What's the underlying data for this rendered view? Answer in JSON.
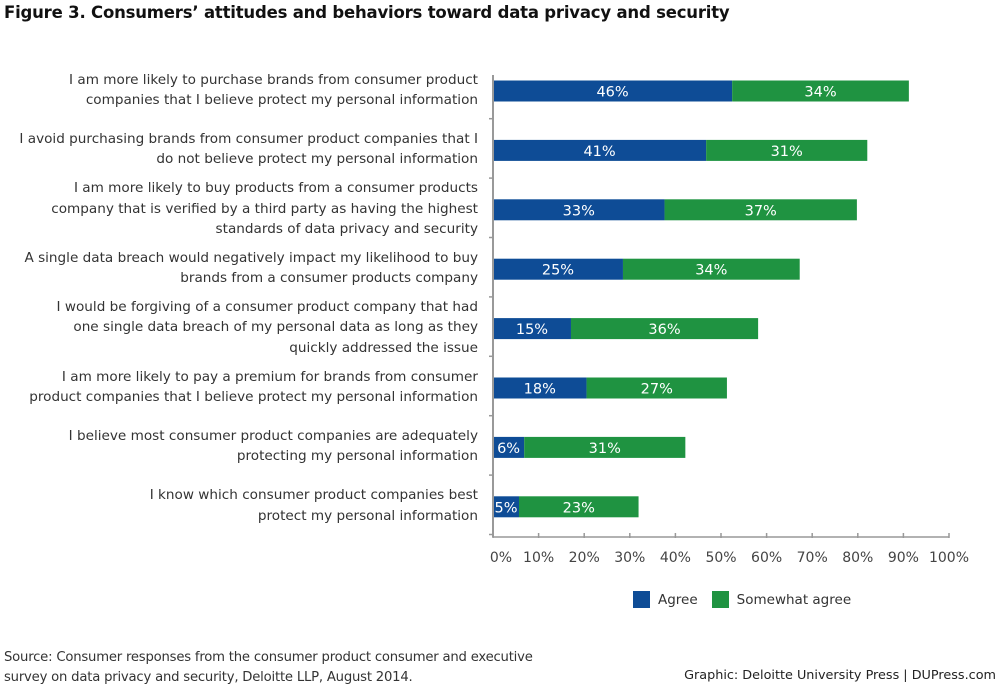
{
  "title": "Figure 3. Consumers’ attitudes and behaviors toward data privacy and security",
  "colors": {
    "agree": "#0e4c96",
    "somewhat_agree": "#1f9341",
    "axis": "#999999"
  },
  "chart_data": {
    "type": "bar",
    "orientation": "horizontal",
    "stacked": true,
    "title": "Figure 3. Consumers’ attitudes and behaviors toward data privacy and security",
    "xlabel": "",
    "ylabel": "",
    "xlim": [
      0,
      100
    ],
    "x_ticks": [
      "0%",
      "10%",
      "20%",
      "30%",
      "40%",
      "50%",
      "60%",
      "70%",
      "80%",
      "90%",
      "100%"
    ],
    "grid": false,
    "legend_position": "bottom",
    "categories": [
      [
        "I am more likely to purchase brands from consumer product",
        "companies that I believe protect my personal information"
      ],
      [
        "I avoid purchasing brands from consumer product companies that I",
        "do not believe protect my personal information"
      ],
      [
        "I am more likely to buy products from a consumer products",
        "company that is verified by a third party as having the highest",
        "standards of data privacy and security"
      ],
      [
        "A single data breach would negatively impact my likelihood to buy",
        "brands from a consumer products company"
      ],
      [
        "I would be forgiving of a consumer product company that had",
        "one single data breach of my personal data as long as they",
        "quickly addressed the issue"
      ],
      [
        "I am more likely to pay a premium for brands from consumer",
        "product companies that I believe protect my personal information"
      ],
      [
        "I believe most consumer product companies are adequately",
        "protecting my personal information"
      ],
      [
        "I know which consumer product companies best",
        "protect my personal information"
      ]
    ],
    "series": [
      {
        "name": "Agree",
        "values": [
          46,
          41,
          33,
          25,
          15,
          18,
          6,
          5
        ],
        "labels": [
          "46%",
          "41%",
          "33%",
          "25%",
          "15%",
          "18%",
          "6%",
          "5%"
        ]
      },
      {
        "name": "Somewhat agree",
        "values": [
          34,
          31,
          37,
          34,
          36,
          27,
          31,
          23
        ],
        "labels": [
          "34%",
          "31%",
          "37%",
          "34%",
          "36%",
          "27%",
          "31%",
          "23%"
        ]
      }
    ]
  },
  "legend": {
    "agree": "Agree",
    "somewhat_agree": "Somewhat agree"
  },
  "source": [
    "Source: Consumer responses from the consumer product consumer and executive",
    "survey on data privacy and security, Deloitte LLP, August 2014."
  ],
  "credit": "Graphic: Deloitte University Press  |  DUPress.com"
}
